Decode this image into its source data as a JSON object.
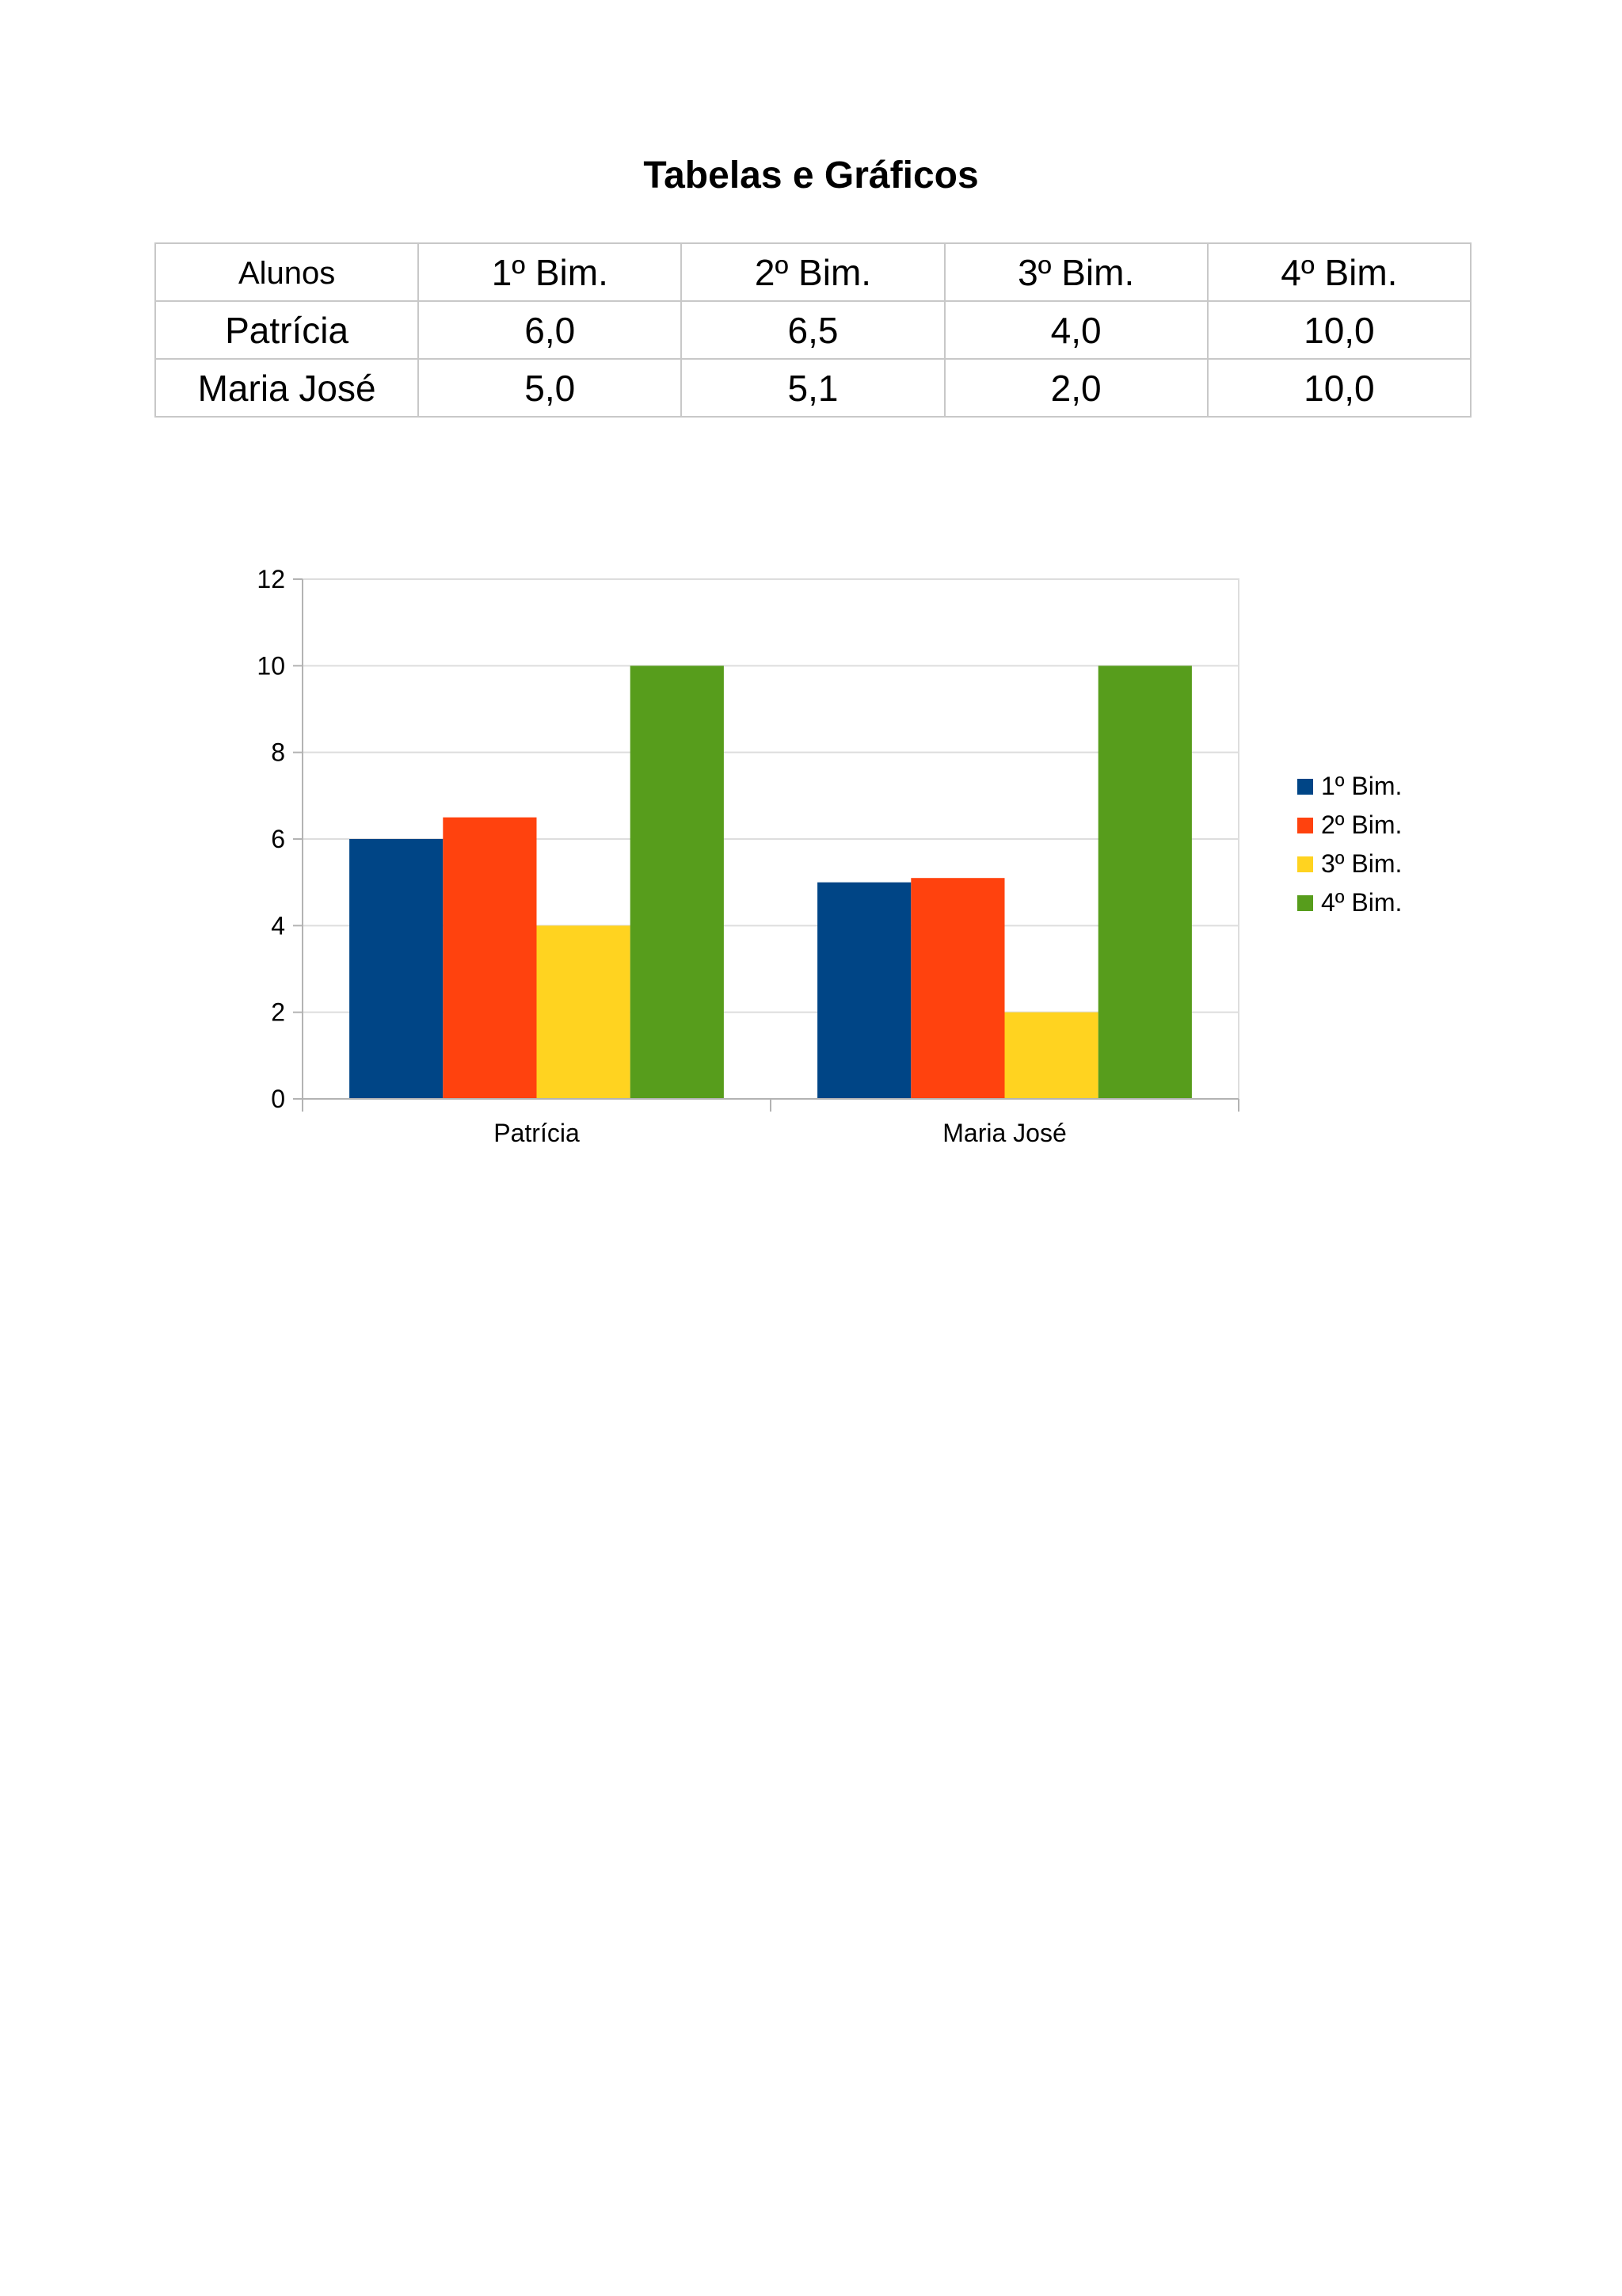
{
  "title": "Tabelas e Gráficos",
  "table": {
    "header": [
      "Alunos",
      "1º Bim.",
      "2º Bim.",
      "3º Bim.",
      "4º Bim."
    ],
    "rows": [
      [
        "Patrícia",
        "6,0",
        "6,5",
        "4,0",
        "10,0"
      ],
      [
        "Maria José",
        "5,0",
        "5,1",
        "2,0",
        "10,0"
      ]
    ]
  },
  "chart_data": {
    "type": "bar",
    "title": "",
    "xlabel": "",
    "ylabel": "",
    "categories": [
      "Patrícia",
      "Maria José"
    ],
    "series": [
      {
        "name": "1º Bim.",
        "values": [
          6.0,
          5.0
        ],
        "color": "#004586"
      },
      {
        "name": "2º Bim.",
        "values": [
          6.5,
          5.1
        ],
        "color": "#ff420e"
      },
      {
        "name": "3º Bim.",
        "values": [
          4.0,
          2.0
        ],
        "color": "#ffd320"
      },
      {
        "name": "4º Bim.",
        "values": [
          10.0,
          10.0
        ],
        "color": "#579d1c"
      }
    ],
    "ylim": [
      0,
      12
    ],
    "yticks": [
      0,
      2,
      4,
      6,
      8,
      10,
      12
    ],
    "grid": true,
    "legend": "right"
  }
}
